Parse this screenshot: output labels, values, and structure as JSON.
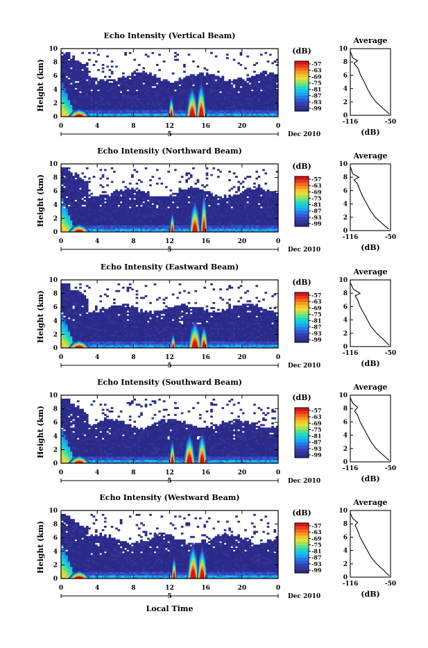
{
  "figure": {
    "x_label": "Local Time",
    "date_label": "Dec 2010",
    "day_label": "5"
  },
  "colorbar": {
    "unit": "(dB)",
    "ticks": [
      "-57",
      "-63",
      "-69",
      "-75",
      "-81",
      "-87",
      "-93",
      "-99"
    ],
    "colors": [
      "#2b2b8a",
      "#313695",
      "#3a3fb0",
      "#2d5bd8",
      "#1f7fe8",
      "#1ea4f0",
      "#17c4e6",
      "#20d9c2",
      "#5fe08e",
      "#a5e25b",
      "#dde23c",
      "#f5c629",
      "#f99a22",
      "#f56a1f",
      "#ea3a1c",
      "#d7141a"
    ]
  },
  "chart_data": [
    {
      "type": "heatmap",
      "title": "Echo Intensity (Vertical Beam)",
      "ylabel": "Height (km)",
      "xlabel": "Local Time",
      "xlim": [
        0,
        24
      ],
      "ylim": [
        0,
        10
      ],
      "x_ticks": [
        "0",
        "4",
        "8",
        "12",
        "16",
        "20",
        "0"
      ],
      "y_ticks": [
        "0",
        "2",
        "4",
        "6",
        "8",
        "10"
      ],
      "colorbar_range_db": [
        -99,
        -57
      ],
      "average_panel": {
        "title": "Average",
        "xlabel": "(dB)",
        "x_ticks": [
          "-116",
          "-50"
        ],
        "y_ticks": [
          "0",
          "2",
          "4",
          "6",
          "8",
          "10"
        ],
        "xlim": [
          -116,
          -50
        ],
        "profile": [
          [
            -52,
            0.2
          ],
          [
            -62,
            1.0
          ],
          [
            -74,
            2.0
          ],
          [
            -82,
            3.0
          ],
          [
            -88,
            4.0
          ],
          [
            -93,
            5.0
          ],
          [
            -99,
            6.0
          ],
          [
            -103,
            7.0
          ],
          [
            -110,
            7.8
          ],
          [
            -104,
            8.2
          ],
          [
            -112,
            8.6
          ],
          [
            -116,
            9.6
          ]
        ]
      },
      "echo_patches": [
        {
          "t": 14.5,
          "top": 4.6,
          "w": 1.4
        },
        {
          "t": 15.5,
          "top": 5.4,
          "w": 1.2
        },
        {
          "t": 12.2,
          "top": 3.2,
          "w": 0.7
        },
        {
          "t": 2.0,
          "top": 1.2,
          "w": 2.5
        }
      ]
    },
    {
      "type": "heatmap",
      "title": "Echo Intensity (Northward Beam)",
      "ylabel": "Height (km)",
      "xlabel": "Local Time",
      "xlim": [
        0,
        24
      ],
      "ylim": [
        0,
        10
      ],
      "x_ticks": [
        "0",
        "4",
        "8",
        "12",
        "16",
        "20",
        "0"
      ],
      "y_ticks": [
        "0",
        "2",
        "4",
        "6",
        "8",
        "10"
      ],
      "colorbar_range_db": [
        -99,
        -57
      ],
      "average_panel": {
        "title": "Average",
        "xlabel": "(dB)",
        "x_ticks": [
          "-116",
          "-50"
        ],
        "y_ticks": [
          "0",
          "2",
          "4",
          "6",
          "8",
          "10"
        ],
        "xlim": [
          -116,
          -50
        ],
        "profile": [
          [
            -53,
            0.2
          ],
          [
            -63,
            1.0
          ],
          [
            -75,
            2.0
          ],
          [
            -83,
            3.0
          ],
          [
            -89,
            4.0
          ],
          [
            -95,
            5.0
          ],
          [
            -100,
            6.0
          ],
          [
            -104,
            7.0
          ],
          [
            -110,
            7.6
          ],
          [
            -102,
            8.0
          ],
          [
            -112,
            8.5
          ],
          [
            -116,
            9.6
          ]
        ]
      },
      "echo_patches": [
        {
          "t": 14.8,
          "top": 4.8,
          "w": 1.3
        },
        {
          "t": 15.8,
          "top": 6.0,
          "w": 0.8
        },
        {
          "t": 12.3,
          "top": 3.0,
          "w": 0.6
        },
        {
          "t": 2.0,
          "top": 1.2,
          "w": 2.5
        }
      ]
    },
    {
      "type": "heatmap",
      "title": "Echo Intensity (Eastward Beam)",
      "ylabel": "Height (km)",
      "xlabel": "Local Time",
      "xlim": [
        0,
        24
      ],
      "ylim": [
        0,
        10
      ],
      "x_ticks": [
        "0",
        "4",
        "8",
        "12",
        "16",
        "20",
        "0"
      ],
      "y_ticks": [
        "0",
        "2",
        "4",
        "6",
        "8",
        "10"
      ],
      "colorbar_range_db": [
        -99,
        -57
      ],
      "average_panel": {
        "title": "Average",
        "xlabel": "(dB)",
        "x_ticks": [
          "-116",
          "-50"
        ],
        "y_ticks": [
          "0",
          "2",
          "4",
          "6",
          "8",
          "10"
        ],
        "xlim": [
          -116,
          -50
        ],
        "profile": [
          [
            -52,
            0.2
          ],
          [
            -61,
            1.0
          ],
          [
            -73,
            2.0
          ],
          [
            -82,
            3.0
          ],
          [
            -88,
            4.0
          ],
          [
            -94,
            5.0
          ],
          [
            -100,
            6.0
          ],
          [
            -104,
            7.0
          ],
          [
            -108,
            7.6
          ],
          [
            -100,
            8.0
          ],
          [
            -111,
            8.6
          ],
          [
            -116,
            9.6
          ]
        ]
      },
      "echo_patches": [
        {
          "t": 14.8,
          "top": 4.2,
          "w": 1.6
        },
        {
          "t": 15.8,
          "top": 3.4,
          "w": 1.0
        },
        {
          "t": 12.4,
          "top": 2.2,
          "w": 0.6
        },
        {
          "t": 2.0,
          "top": 1.2,
          "w": 2.5
        }
      ]
    },
    {
      "type": "heatmap",
      "title": "Echo Intensity (Southward Beam)",
      "ylabel": "Height (km)",
      "xlabel": "Local Time",
      "xlim": [
        0,
        24
      ],
      "ylim": [
        0,
        10
      ],
      "x_ticks": [
        "0",
        "4",
        "8",
        "12",
        "16",
        "20",
        "0"
      ],
      "y_ticks": [
        "0",
        "2",
        "4",
        "6",
        "8",
        "10"
      ],
      "colorbar_range_db": [
        -99,
        -57
      ],
      "average_panel": {
        "title": "Average",
        "xlabel": "(dB)",
        "x_ticks": [
          "-116",
          "-50"
        ],
        "y_ticks": [
          "0",
          "2",
          "4",
          "6",
          "8",
          "10"
        ],
        "xlim": [
          -116,
          -50
        ],
        "profile": [
          [
            -52,
            0.2
          ],
          [
            -62,
            1.0
          ],
          [
            -74,
            2.0
          ],
          [
            -82,
            3.0
          ],
          [
            -88,
            4.0
          ],
          [
            -94,
            5.0
          ],
          [
            -100,
            6.0
          ],
          [
            -104,
            7.0
          ],
          [
            -109,
            7.6
          ],
          [
            -104,
            8.2
          ],
          [
            -112,
            8.8
          ],
          [
            -116,
            9.6
          ]
        ]
      },
      "echo_patches": [
        {
          "t": 14.2,
          "top": 4.6,
          "w": 1.4
        },
        {
          "t": 15.6,
          "top": 4.8,
          "w": 1.2
        },
        {
          "t": 12.3,
          "top": 3.6,
          "w": 0.7
        },
        {
          "t": 2.0,
          "top": 1.2,
          "w": 2.5
        }
      ]
    },
    {
      "type": "heatmap",
      "title": "Echo Intensity (Westward Beam)",
      "ylabel": "Height (km)",
      "xlabel": "Local Time",
      "xlim": [
        0,
        24
      ],
      "ylim": [
        0,
        10
      ],
      "x_ticks": [
        "0",
        "4",
        "8",
        "12",
        "16",
        "20",
        "0"
      ],
      "y_ticks": [
        "0",
        "2",
        "4",
        "6",
        "8",
        "10"
      ],
      "colorbar_range_db": [
        -99,
        -57
      ],
      "average_panel": {
        "title": "Average",
        "xlabel": "(dB)",
        "x_ticks": [
          "-116",
          "-50"
        ],
        "y_ticks": [
          "0",
          "2",
          "4",
          "6",
          "8",
          "10"
        ],
        "xlim": [
          -116,
          -50
        ],
        "profile": [
          [
            -52,
            0.2
          ],
          [
            -61,
            1.0
          ],
          [
            -73,
            2.0
          ],
          [
            -82,
            3.0
          ],
          [
            -88,
            4.0
          ],
          [
            -94,
            5.0
          ],
          [
            -100,
            6.0
          ],
          [
            -104,
            7.0
          ],
          [
            -108,
            7.8
          ],
          [
            -104,
            8.2
          ],
          [
            -112,
            8.8
          ],
          [
            -116,
            9.6
          ]
        ]
      },
      "echo_patches": [
        {
          "t": 14.6,
          "top": 5.4,
          "w": 1.4
        },
        {
          "t": 15.6,
          "top": 5.0,
          "w": 1.2
        },
        {
          "t": 12.5,
          "top": 3.4,
          "w": 0.6
        },
        {
          "t": 2.0,
          "top": 1.2,
          "w": 2.5
        }
      ]
    }
  ]
}
